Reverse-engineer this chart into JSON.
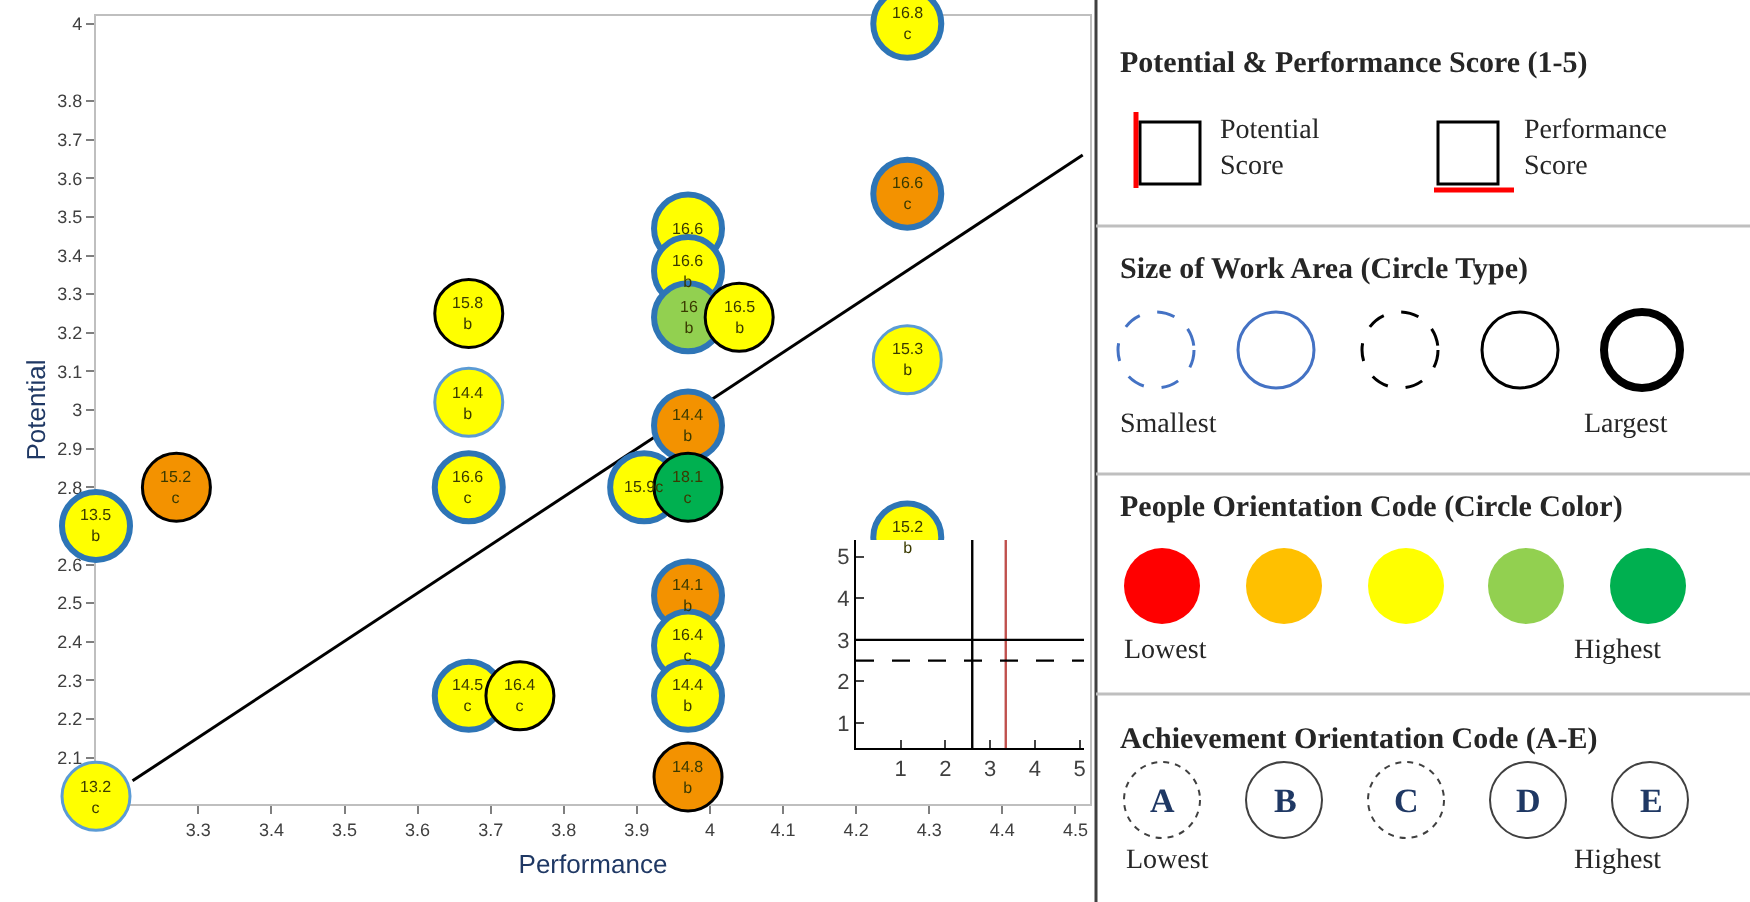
{
  "chart_data": [
    {
      "type": "scatter",
      "xlabel": "Performance",
      "ylabel": "Potential",
      "xlim": [
        3.16,
        4.52
      ],
      "ylim": [
        1.98,
        4.02
      ],
      "xticks": [
        3.3,
        3.4,
        3.5,
        3.6,
        3.7,
        3.8,
        3.9,
        4,
        4.1,
        4.2,
        4.3,
        4.4,
        4.5
      ],
      "yticks": [
        2.1,
        2.2,
        2.3,
        2.4,
        2.5,
        2.6,
        2.8,
        2.9,
        3,
        3.1,
        3.2,
        3.3,
        3.4,
        3.5,
        3.6,
        3.7,
        3.8,
        4
      ],
      "marker": "circle",
      "series": [
        {
          "color": "#5b9bd5",
          "line_style": "dashed",
          "x": [
            3.16,
            3.67,
            4.27
          ],
          "values": [
            2.0,
            3.02,
            3.13
          ],
          "colors": [
            "#ffff00",
            "#ffff00",
            "#ffff00"
          ]
        },
        {
          "color": "#2e75b6",
          "line_style": "solid",
          "x": [
            3.16,
            3.67,
            3.67,
            3.97,
            3.97,
            3.97,
            3.97,
            3.91,
            3.97,
            3.97,
            3.97,
            4.27,
            4.27,
            4.27
          ],
          "values": [
            2.7,
            2.8,
            2.26,
            3.47,
            3.36,
            3.24,
            2.96,
            2.8,
            2.52,
            2.39,
            2.26,
            4.0,
            3.56,
            2.67
          ],
          "colors": [
            "#ffff00",
            "#ffff00",
            "#ffff00",
            "#ffff00",
            "#ffff00",
            "#92d050",
            "#f39200",
            "#ffff00",
            "#f39200",
            "#ffff00",
            "#ffff00",
            "#ffff00",
            "#f39200",
            "#ffff00"
          ]
        },
        {
          "color": "#000000",
          "line_style": "dashed",
          "x": [
            3.27,
            3.67,
            3.74,
            4.04,
            3.97,
            3.97
          ],
          "values": [
            2.8,
            3.25,
            2.26,
            3.24,
            2.8,
            2.05
          ],
          "colors": [
            "#f39200",
            "#ffff00",
            "#ffff00",
            "#ffff00",
            "#00b050",
            "#f39200"
          ]
        },
        {
          "type": "line",
          "marker": "none",
          "color": "#000000",
          "line_style": "solid",
          "x": [
            3.21,
            4.51
          ],
          "values": [
            2.04,
            3.66
          ]
        }
      ],
      "annotations": [
        {
          "text": "13.2\nc",
          "x": 3.16,
          "y": 2.0
        },
        {
          "text": "14.4\nb",
          "x": 3.67,
          "y": 3.02
        },
        {
          "text": "15.3\nb",
          "x": 4.27,
          "y": 3.13
        },
        {
          "text": "13.5\nb",
          "x": 3.16,
          "y": 2.7
        },
        {
          "text": "16.6\nc",
          "x": 3.67,
          "y": 2.8
        },
        {
          "text": "14.5\nc",
          "x": 3.67,
          "y": 2.26
        },
        {
          "text": "16.6",
          "x": 3.97,
          "y": 3.47
        },
        {
          "text": "16.6\nb",
          "x": 3.97,
          "y": 3.36
        },
        {
          "text": "16\nb",
          "x": 3.97,
          "y": 3.24
        },
        {
          "text": "14.4\nb",
          "x": 3.97,
          "y": 2.96
        },
        {
          "text": "15.9c",
          "x": 3.91,
          "y": 2.8
        },
        {
          "text": "14.1\nb",
          "x": 3.97,
          "y": 2.52
        },
        {
          "text": "16.4\nc",
          "x": 3.97,
          "y": 2.39
        },
        {
          "text": "14.4\nb",
          "x": 3.97,
          "y": 2.26
        },
        {
          "text": "16.8\nc",
          "x": 4.27,
          "y": 4.0
        },
        {
          "text": "16.6\nc",
          "x": 4.27,
          "y": 3.56
        },
        {
          "text": "15.2\nb",
          "x": 4.27,
          "y": 2.67
        },
        {
          "text": "15.2\nc",
          "x": 3.27,
          "y": 2.8
        },
        {
          "text": "15.8\nb",
          "x": 3.67,
          "y": 3.25
        },
        {
          "text": "16.4\nc",
          "x": 3.74,
          "y": 2.26
        },
        {
          "text": "16.5\nb",
          "x": 4.04,
          "y": 3.24
        },
        {
          "text": "18.1\nc",
          "x": 3.97,
          "y": 2.8
        },
        {
          "text": "14.8\nb",
          "x": 3.97,
          "y": 2.05
        }
      ]
    },
    {
      "type": "line",
      "xlim": [
        0,
        5.1
      ],
      "ylim": [
        0.4,
        5.4
      ],
      "xticks": [
        1,
        2,
        3,
        4,
        5
      ],
      "yticks": [
        1,
        2,
        3,
        4,
        5
      ],
      "ref_lines": [
        {
          "axis": "x",
          "value": 2.6,
          "color": "#000000",
          "line_style": "solid"
        },
        {
          "axis": "x",
          "value": 3.35,
          "color": "#c0504d",
          "line_style": "solid"
        },
        {
          "axis": "y",
          "value": 3,
          "color": "#000000",
          "line_style": "solid"
        },
        {
          "axis": "y",
          "value": 2.5,
          "color": "#000000",
          "line_style": "dashed"
        }
      ]
    },
    {
      "type": "other",
      "annotations": [
        "Potential & Performance Score (1-5)",
        "Potential\nScore",
        "Performance\nScore",
        "Size of Work Area (Circle Type)",
        "Smallest",
        "Largest",
        "People Orientation Code (Circle Color)",
        "Lowest",
        "Highest",
        "Achievement Orientation Code (A-E)",
        "A",
        "B",
        "C",
        "D",
        "E",
        "Lowest",
        "Highest"
      ]
    }
  ]
}
